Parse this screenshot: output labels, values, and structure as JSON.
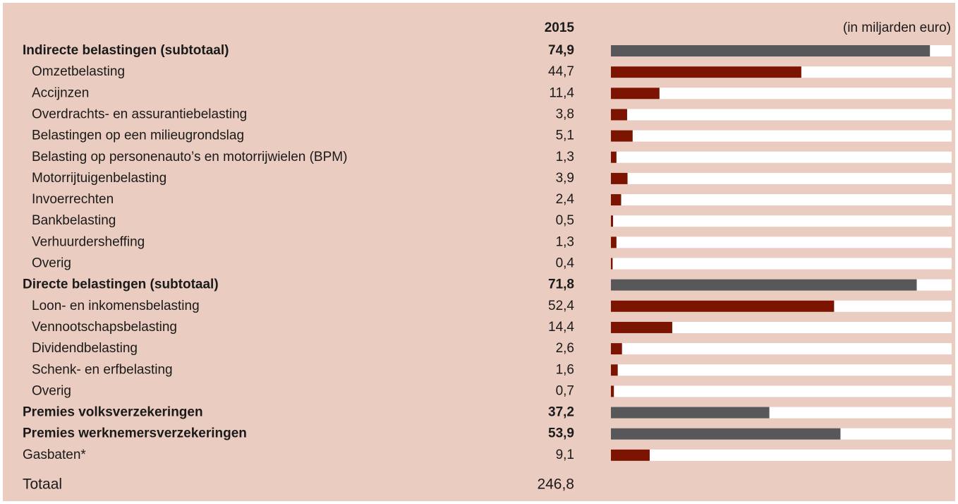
{
  "chart_data": {
    "type": "bar",
    "orientation": "horizontal",
    "column_header": "2015",
    "unit": "(in miljarden euro)",
    "categories": [
      "Indirecte belastingen (subtotaal)",
      "Omzetbelasting",
      "Accijnzen",
      "Overdrachts- en assurantiebelasting",
      "Belastingen op een milieugrondslag",
      "Belasting op personenauto’s en motorrijwielen (BPM)",
      "Motorrijtuigenbelasting",
      "Invoerrechten",
      "Bankbelasting",
      "Verhuurdersheffing",
      "Overig",
      "Directe belastingen (subtotaal)",
      "Loon- en inkomensbelasting",
      "Vennootschapsbelasting",
      "Dividendbelasting",
      "Schenk- en erfbelasting",
      "Overig",
      "Premies volksverzekeringen",
      "Premies werknemersverzekeringen",
      "Gasbaten*"
    ],
    "values": [
      74.9,
      44.7,
      11.4,
      3.8,
      5.1,
      1.3,
      3.9,
      2.4,
      0.5,
      1.3,
      0.4,
      71.8,
      52.4,
      14.4,
      2.6,
      1.6,
      0.7,
      37.2,
      53.9,
      9.1
    ],
    "value_labels": [
      "74,9",
      "44,7",
      "11,4",
      "3,8",
      "5,1",
      "1,3",
      "3,9",
      "2,4",
      "0,5",
      "1,3",
      "0,4",
      "71,8",
      "52,4",
      "14,4",
      "2,6",
      "1,6",
      "0,7",
      "37,2",
      "53,9",
      "9,1"
    ],
    "bold": [
      true,
      false,
      false,
      false,
      false,
      false,
      false,
      false,
      false,
      false,
      false,
      true,
      false,
      false,
      false,
      false,
      false,
      true,
      true,
      false
    ],
    "indent": [
      false,
      true,
      true,
      true,
      true,
      true,
      true,
      true,
      true,
      true,
      true,
      false,
      true,
      true,
      true,
      true,
      true,
      false,
      false,
      false
    ],
    "colors": [
      "#58585a",
      "#7b1400",
      "#7b1400",
      "#7b1400",
      "#7b1400",
      "#7b1400",
      "#7b1400",
      "#7b1400",
      "#7b1400",
      "#7b1400",
      "#7b1400",
      "#58585a",
      "#7b1400",
      "#7b1400",
      "#7b1400",
      "#7b1400",
      "#7b1400",
      "#58585a",
      "#58585a",
      "#7b1400"
    ],
    "xlim": [
      0,
      80
    ],
    "total_label": "Totaal",
    "total_value": 246.8,
    "total_value_label": "246,8"
  }
}
